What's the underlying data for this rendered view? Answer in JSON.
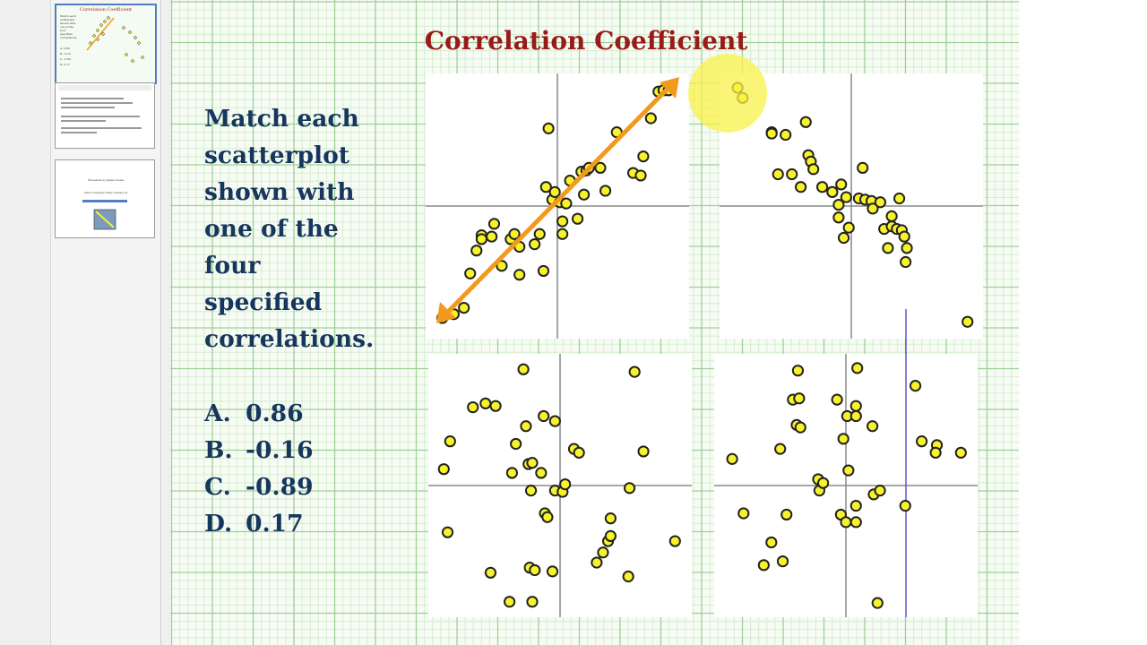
{
  "slide": {
    "title": "Correlation Coefficient",
    "prompt": "Match each scatterplot shown with one of the four specified correlations.",
    "prompt_lines": [
      "Match each",
      "scatterplot",
      "shown with",
      "one of the",
      "four",
      "specified",
      "correlations."
    ],
    "options": [
      {
        "letter": "A.",
        "value": "0.86"
      },
      {
        "letter": "B.",
        "value": "-0.16"
      },
      {
        "letter": "C.",
        "value": "-0.89"
      },
      {
        "letter": "D.",
        "value": "0.17"
      }
    ]
  },
  "thumbnails": {
    "t1_lines": [
      "Match each",
      "scatterplot",
      "shown with",
      "one of the",
      "four",
      "specified",
      "correlations.",
      "A. 0.86",
      "B. -0.16",
      "C. -0.89",
      "D. 0.17"
    ],
    "t3_lines": [
      "Presented by James Sousa",
      "View Complete Video Library at"
    ]
  },
  "colors": {
    "title": "#9a1a1a",
    "text": "#17365d",
    "grid_minor": "#d6ecd0",
    "grid_major": "#9fcf97",
    "point_fill": "#f7f22a",
    "arrow": "#f39a1e",
    "highlight": "#f9f24a"
  },
  "chart_data": [
    {
      "type": "scatter",
      "name_hint": "top-left",
      "points": [
        [
          -8.2,
          -8.5
        ],
        [
          -7.4,
          -8.0
        ],
        [
          -6.9,
          -5.3
        ],
        [
          -6.4,
          -3.5
        ],
        [
          -6.0,
          -2.3
        ],
        [
          -5.2,
          -2.4
        ],
        [
          -6.0,
          -2.6
        ],
        [
          -5.0,
          -1.4
        ],
        [
          -4.4,
          -4.7
        ],
        [
          -3.7,
          -2.6
        ],
        [
          -3.4,
          -2.2
        ],
        [
          -3.0,
          -3.2
        ],
        [
          -3.0,
          -5.4
        ],
        [
          -1.8,
          -3.0
        ],
        [
          -1.4,
          -2.2
        ],
        [
          -1.1,
          -5.1
        ],
        [
          -0.9,
          1.5
        ],
        [
          -0.7,
          6.1
        ],
        [
          -0.4,
          0.5
        ],
        [
          -0.2,
          1.1
        ],
        [
          0.2,
          0.3
        ],
        [
          0.4,
          -1.2
        ],
        [
          0.4,
          -2.2
        ],
        [
          0.7,
          0.2
        ],
        [
          1.0,
          2.0
        ],
        [
          1.6,
          -1.0
        ],
        [
          1.9,
          2.7
        ],
        [
          2.1,
          0.9
        ],
        [
          2.3,
          2.8
        ],
        [
          2.5,
          3.0
        ],
        [
          3.4,
          3.0
        ],
        [
          3.8,
          1.2
        ],
        [
          4.7,
          5.8
        ],
        [
          6.0,
          2.6
        ],
        [
          6.6,
          2.4
        ],
        [
          6.8,
          3.9
        ],
        [
          7.4,
          6.9
        ],
        [
          8.0,
          9.0
        ],
        [
          8.4,
          9.1
        ],
        [
          8.8,
          9.1
        ],
        [
          -9.1,
          -8.8
        ]
      ],
      "xlim": [
        -10,
        10
      ],
      "ylim": [
        -10,
        10
      ]
    },
    {
      "type": "scatter",
      "name_hint": "top-right",
      "points": [
        [
          -9.0,
          9.3
        ],
        [
          -8.6,
          8.5
        ],
        [
          -6.3,
          5.8
        ],
        [
          -6.3,
          5.7
        ],
        [
          -5.2,
          5.6
        ],
        [
          -3.6,
          6.6
        ],
        [
          -5.8,
          2.5
        ],
        [
          -4.7,
          2.5
        ],
        [
          -4.0,
          1.5
        ],
        [
          -3.4,
          4.0
        ],
        [
          -3.2,
          3.5
        ],
        [
          -3.0,
          2.9
        ],
        [
          -2.3,
          1.5
        ],
        [
          -1.5,
          1.1
        ],
        [
          -1.0,
          0.1
        ],
        [
          -1.0,
          -0.9
        ],
        [
          -1.5,
          1.1
        ],
        [
          -0.8,
          1.7
        ],
        [
          -0.4,
          0.7
        ],
        [
          -0.2,
          -1.7
        ],
        [
          -0.6,
          -2.5
        ],
        [
          0.6,
          0.6
        ],
        [
          0.9,
          3.0
        ],
        [
          1.1,
          0.5
        ],
        [
          1.6,
          0.4
        ],
        [
          1.7,
          -0.2
        ],
        [
          2.3,
          0.3
        ],
        [
          2.6,
          -1.8
        ],
        [
          2.9,
          -3.3
        ],
        [
          3.2,
          -0.8
        ],
        [
          3.2,
          -1.6
        ],
        [
          3.6,
          -1.8
        ],
        [
          3.8,
          0.6
        ],
        [
          4.0,
          -1.9
        ],
        [
          4.2,
          -2.4
        ],
        [
          4.4,
          -3.3
        ],
        [
          4.3,
          -4.4
        ],
        [
          9.2,
          -9.1
        ]
      ],
      "xlim": [
        -10,
        10
      ],
      "ylim": [
        -10,
        10
      ]
    },
    {
      "type": "scatter",
      "name_hint": "bottom-left",
      "points": [
        [
          -9.2,
          1.3
        ],
        [
          -8.7,
          3.5
        ],
        [
          -8.9,
          -3.7
        ],
        [
          -6.9,
          6.2
        ],
        [
          -5.9,
          6.5
        ],
        [
          -5.1,
          6.3
        ],
        [
          -5.5,
          -6.9
        ],
        [
          -3.8,
          1.0
        ],
        [
          -3.5,
          3.3
        ],
        [
          -2.9,
          9.2
        ],
        [
          -2.7,
          4.7
        ],
        [
          -2.5,
          1.7
        ],
        [
          -2.2,
          1.8
        ],
        [
          -2.3,
          -0.4
        ],
        [
          -2.4,
          -6.5
        ],
        [
          -2.0,
          -6.7
        ],
        [
          -1.5,
          1.0
        ],
        [
          -1.3,
          5.5
        ],
        [
          -1.2,
          -2.2
        ],
        [
          -1.0,
          -2.5
        ],
        [
          -0.4,
          -0.4
        ],
        [
          -0.6,
          -6.8
        ],
        [
          -0.4,
          5.1
        ],
        [
          0.2,
          -0.5
        ],
        [
          0.4,
          0.1
        ],
        [
          1.1,
          2.9
        ],
        [
          1.5,
          2.6
        ],
        [
          2.9,
          -6.1
        ],
        [
          3.4,
          -5.3
        ],
        [
          3.8,
          -4.4
        ],
        [
          4.0,
          -4.0
        ],
        [
          4.0,
          -2.6
        ],
        [
          5.4,
          -7.2
        ],
        [
          5.5,
          -0.2
        ],
        [
          5.9,
          9.0
        ],
        [
          6.6,
          2.7
        ],
        [
          9.1,
          -4.4
        ],
        [
          -4.0,
          -9.2
        ],
        [
          -2.2,
          -9.2
        ]
      ],
      "xlim": [
        -10,
        10
      ],
      "ylim": [
        -10,
        10
      ]
    },
    {
      "type": "scatter",
      "name_hint": "bottom-right",
      "points": [
        [
          -9.0,
          2.1
        ],
        [
          -8.1,
          -2.2
        ],
        [
          -5.9,
          -4.5
        ],
        [
          -6.5,
          -6.3
        ],
        [
          -5.0,
          -6.0
        ],
        [
          -5.2,
          2.9
        ],
        [
          -4.7,
          -2.3
        ],
        [
          -4.2,
          6.8
        ],
        [
          -3.7,
          6.9
        ],
        [
          -3.9,
          4.8
        ],
        [
          -3.6,
          4.6
        ],
        [
          -3.8,
          9.1
        ],
        [
          -2.2,
          0.5
        ],
        [
          -2.1,
          -0.4
        ],
        [
          -1.8,
          0.2
        ],
        [
          -0.7,
          6.8
        ],
        [
          -0.2,
          3.7
        ],
        [
          -0.4,
          -2.3
        ],
        [
          0.0,
          -2.9
        ],
        [
          0.2,
          1.2
        ],
        [
          0.1,
          5.5
        ],
        [
          0.8,
          -1.6
        ],
        [
          0.8,
          6.3
        ],
        [
          0.8,
          5.5
        ],
        [
          0.9,
          9.3
        ],
        [
          0.8,
          -2.9
        ],
        [
          2.2,
          -0.7
        ],
        [
          2.1,
          4.7
        ],
        [
          2.7,
          -0.4
        ],
        [
          4.7,
          -1.6
        ],
        [
          5.5,
          7.9
        ],
        [
          6.0,
          3.5
        ],
        [
          7.2,
          3.2
        ],
        [
          7.1,
          2.6
        ],
        [
          9.1,
          2.6
        ],
        [
          2.5,
          -9.3
        ]
      ],
      "xlim": [
        -10,
        10
      ],
      "ylim": [
        -10,
        10
      ]
    }
  ]
}
